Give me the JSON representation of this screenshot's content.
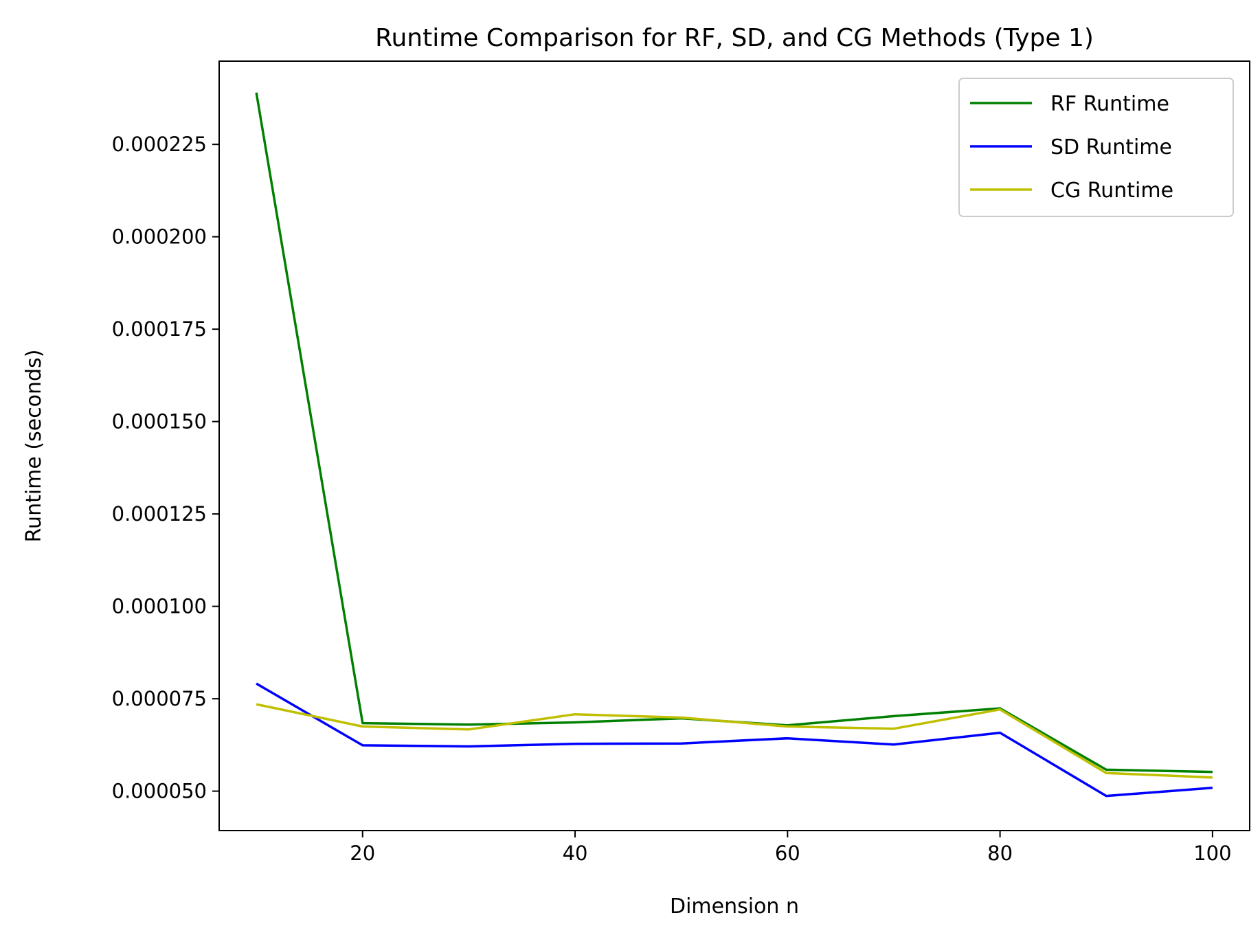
{
  "chart_data": {
    "type": "line",
    "title": "Runtime Comparison for RF, SD, and CG Methods (Type 1)",
    "xlabel": "Dimension n",
    "ylabel": "Runtime (seconds)",
    "xlim": [
      6.5,
      103.5
    ],
    "ylim": [
      3.933e-05,
      0.00024752
    ],
    "xticks": [
      20,
      40,
      60,
      80,
      100
    ],
    "xtick_labels": [
      "20",
      "40",
      "60",
      "80",
      "100"
    ],
    "yticks": [
      5e-05,
      7.5e-05,
      0.0001,
      0.000125,
      0.00015,
      0.000175,
      0.0002,
      0.000225
    ],
    "ytick_labels": [
      "0.000050",
      "0.000075",
      "0.000100",
      "0.000125",
      "0.000150",
      "0.000175",
      "0.000200",
      "0.000225"
    ],
    "grid": false,
    "legend_position": "top-right",
    "x": [
      10,
      20,
      30,
      40,
      50,
      60,
      70,
      80,
      90,
      100
    ],
    "series": [
      {
        "name": "RF Runtime",
        "color": "#008000",
        "values": [
          0.000239,
          6.84e-05,
          6.8e-05,
          6.86e-05,
          6.97e-05,
          6.78e-05,
          7.03e-05,
          7.24e-05,
          5.58e-05,
          5.52e-05
        ]
      },
      {
        "name": "SD Runtime",
        "color": "#0000ff",
        "values": [
          7.91e-05,
          6.24e-05,
          6.21e-05,
          6.28e-05,
          6.29e-05,
          6.43e-05,
          6.26e-05,
          6.58e-05,
          4.87e-05,
          5.09e-05
        ]
      },
      {
        "name": "CG Runtime",
        "color": "#bfbf00",
        "values": [
          7.35e-05,
          6.75e-05,
          6.67e-05,
          7.08e-05,
          6.99e-05,
          6.75e-05,
          6.69e-05,
          7.21e-05,
          5.49e-05,
          5.37e-05
        ]
      }
    ]
  }
}
